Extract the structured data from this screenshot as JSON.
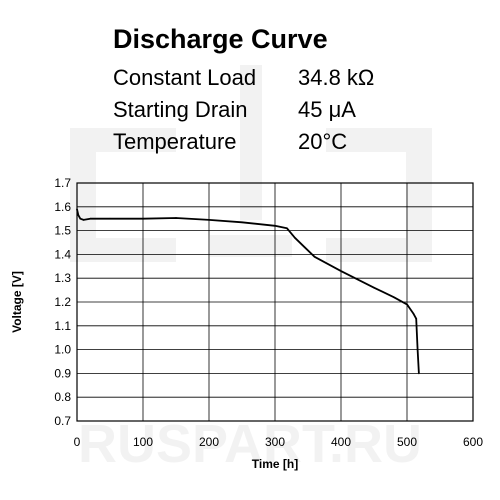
{
  "header": {
    "title": "Discharge Curve",
    "specs": [
      {
        "label": "Constant Load",
        "value": "34.8 kΩ"
      },
      {
        "label": "Starting Drain",
        "value": "45 μA"
      },
      {
        "label": "Temperature",
        "value": "20°C"
      }
    ]
  },
  "watermark": {
    "text": "RUSPART.RU"
  },
  "chart_data": {
    "type": "line",
    "title": "Discharge Curve",
    "xlabel": "Time [h]",
    "ylabel": "Voltage [V]",
    "xlim": [
      0,
      600
    ],
    "ylim": [
      0.7,
      1.7
    ],
    "xticks": [
      "0",
      "100",
      "200",
      "300",
      "400",
      "500",
      "600"
    ],
    "yticks": [
      "0.7",
      "0.8",
      "0.9",
      "1.0",
      "1.1",
      "1.2",
      "1.3",
      "1.4",
      "1.5",
      "1.6",
      "1.7"
    ],
    "grid": true,
    "legend": "none",
    "series": [
      {
        "color": "#000000",
        "x": [
          0,
          2,
          5,
          10,
          20,
          50,
          100,
          150,
          200,
          250,
          300,
          318,
          330,
          345,
          360,
          400,
          450,
          480,
          500,
          510,
          514,
          516,
          518
        ],
        "y": [
          1.59,
          1.565,
          1.55,
          1.545,
          1.55,
          1.55,
          1.55,
          1.553,
          1.545,
          1.535,
          1.52,
          1.51,
          1.47,
          1.43,
          1.39,
          1.33,
          1.26,
          1.22,
          1.19,
          1.15,
          1.13,
          1.0,
          0.9
        ]
      }
    ]
  }
}
